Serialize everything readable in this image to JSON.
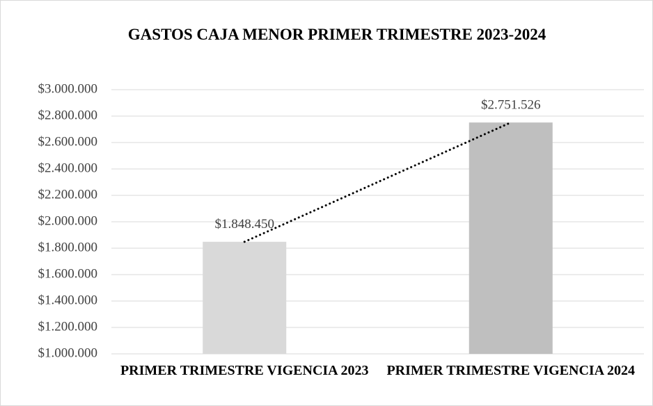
{
  "chart_data": {
    "type": "bar",
    "title": "GASTOS CAJA MENOR PRIMER TRIMESTRE 2023-2024",
    "categories": [
      "PRIMER TRIMESTRE VIGENCIA 2023",
      "PRIMER TRIMESTRE VIGENCIA 2024"
    ],
    "values": [
      1848450,
      2751526
    ],
    "value_labels": [
      "$1.848.450",
      "$2.751.526"
    ],
    "colors": [
      "#d9d9d9",
      "#bfbfbf"
    ],
    "trendline": true,
    "ylim": [
      1000000,
      3000000
    ],
    "yticks": [
      {
        "value": 1000000,
        "label": "$1.000.000"
      },
      {
        "value": 1200000,
        "label": "$1.200.000"
      },
      {
        "value": 1400000,
        "label": "$1.400.000"
      },
      {
        "value": 1600000,
        "label": "$1.600.000"
      },
      {
        "value": 1800000,
        "label": "$1.800.000"
      },
      {
        "value": 2000000,
        "label": "$2.000.000"
      },
      {
        "value": 2200000,
        "label": "$2.200.000"
      },
      {
        "value": 2400000,
        "label": "$2.400.000"
      },
      {
        "value": 2600000,
        "label": "$2.600.000"
      },
      {
        "value": 2800000,
        "label": "$2.800.000"
      },
      {
        "value": 3000000,
        "label": "$3.000.000"
      }
    ],
    "grid": true
  }
}
